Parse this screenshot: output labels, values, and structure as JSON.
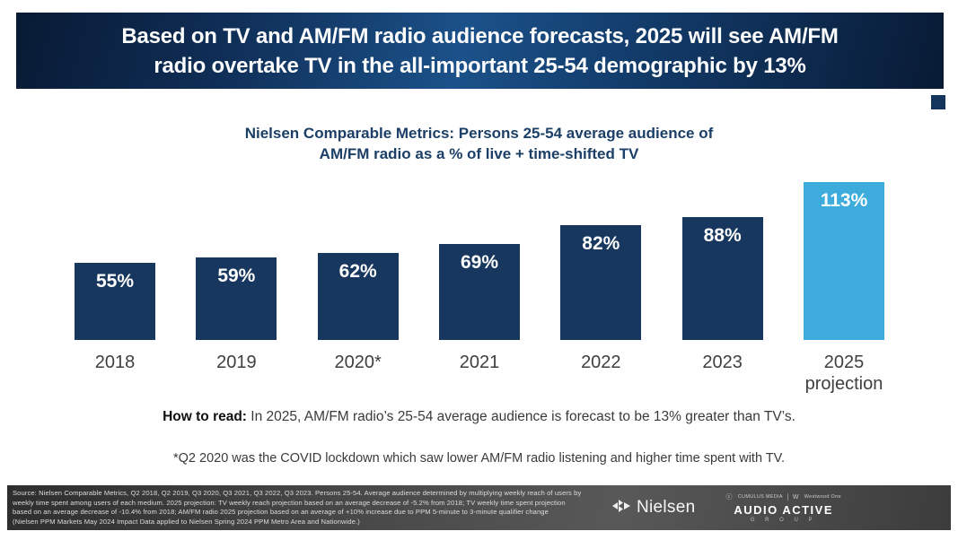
{
  "banner": {
    "title_line1": "Based on TV and AM/FM radio audience forecasts, 2025 will see AM/FM",
    "title_line2": "radio overtake TV in the all-important 25-54 demographic by 13%"
  },
  "chart_data": {
    "type": "bar",
    "title_line1": "Nielsen Comparable Metrics: Persons 25-54 average audience of",
    "title_line2": "AM/FM radio as a % of live + time-shifted TV",
    "categories": [
      "2018",
      "2019",
      "2020*",
      "2021",
      "2022",
      "2023",
      "2025"
    ],
    "values": [
      55,
      59,
      62,
      69,
      82,
      88,
      113
    ],
    "labels": [
      "55%",
      "59%",
      "62%",
      "69%",
      "82%",
      "88%",
      "113%"
    ],
    "last_category_sublabel": "projection",
    "bar_color": "#17375e",
    "highlight_color": "#3dabdb",
    "highlight_index": 6,
    "ylim": [
      0,
      113
    ],
    "grid": false,
    "legend": "none",
    "value_label_position": "inside-top"
  },
  "annotations": {
    "how_to_read_label": "How to read:",
    "how_to_read_text": " In 2025, AM/FM radio’s 25-54 average audience is forecast to be 13% greater than TV’s.",
    "footnote": "*Q2 2020 was the COVID lockdown which saw lower AM/FM radio listening and higher time spent with TV."
  },
  "footer": {
    "source_lines": [
      "Source: Nielsen Comparable Metrics, Q2 2018, Q2 2019, Q3 2020, Q3 2021, Q3 2022, Q3 2023. Persons 25-54. Average audience determined by multiplying weekly reach of users by",
      "weekly time spent among users of each medium. 2025 projection: TV weekly reach projection based on an average decrease of -5.2% from 2018; TV weekly time spent projection",
      "based on an average decrease of -10.4% from 2018; AM/FM radio 2025 projection based on an average of +10% increase due to PPM 5-minute to 3-minute qualifier change",
      "(Nielsen PPM Markets May 2024 Impact Data applied to Nielsen Spring 2024 PPM Metro Area and Nationwide.)"
    ],
    "nielsen_logo_text": "Nielsen",
    "group_logos": {
      "cumulus": "CUMULUS MEDIA",
      "westwood": "Westwood One",
      "audio_active": "AUDIO ACTIVE",
      "group": "G R O U P"
    }
  }
}
